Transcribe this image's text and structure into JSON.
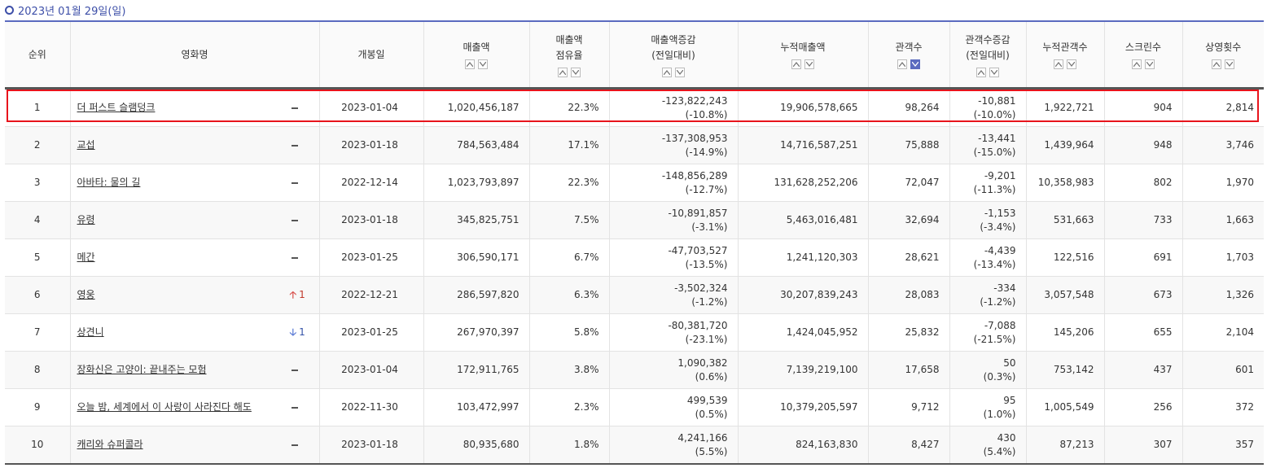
{
  "date": "2023년 01월 29일(일)",
  "columns": {
    "rank": "순위",
    "title": "영화명",
    "open_date": "개봉일",
    "sales": "매출액",
    "share_1": "매출액",
    "share_2": "점유율",
    "sales_change_1": "매출액증감",
    "sales_change_2": "(전일대비)",
    "cum_sales": "누적매출액",
    "audience": "관객수",
    "aud_change_1": "관객수증감",
    "aud_change_2": "(전일대비)",
    "cum_audience": "누적관객수",
    "screens": "스크린수",
    "shows": "상영횟수"
  },
  "accent_color": "#5b6bbf",
  "highlight_color": "#e8141c",
  "rows": [
    {
      "rank": "1",
      "title": "더 퍼스트 슬램덩크",
      "change_type": "same",
      "change_num": "",
      "open_date": "2023-01-04",
      "sales": "1,020,456,187",
      "share": "22.3%",
      "sales_diff": "-123,822,243",
      "sales_diff_pct": "(-10.8%)",
      "cum_sales": "19,906,578,665",
      "audience": "98,264",
      "aud_diff": "-10,881",
      "aud_diff_pct": "(-10.0%)",
      "cum_audience": "1,922,721",
      "screens": "904",
      "shows": "2,814"
    },
    {
      "rank": "2",
      "title": "교섭",
      "change_type": "same",
      "change_num": "",
      "open_date": "2023-01-18",
      "sales": "784,563,484",
      "share": "17.1%",
      "sales_diff": "-137,308,953",
      "sales_diff_pct": "(-14.9%)",
      "cum_sales": "14,716,587,251",
      "audience": "75,888",
      "aud_diff": "-13,441",
      "aud_diff_pct": "(-15.0%)",
      "cum_audience": "1,439,964",
      "screens": "948",
      "shows": "3,746"
    },
    {
      "rank": "3",
      "title": "아바타: 물의 길",
      "change_type": "same",
      "change_num": "",
      "open_date": "2022-12-14",
      "sales": "1,023,793,897",
      "share": "22.3%",
      "sales_diff": "-148,856,289",
      "sales_diff_pct": "(-12.7%)",
      "cum_sales": "131,628,252,206",
      "audience": "72,047",
      "aud_diff": "-9,201",
      "aud_diff_pct": "(-11.3%)",
      "cum_audience": "10,358,983",
      "screens": "802",
      "shows": "1,970"
    },
    {
      "rank": "4",
      "title": "유령",
      "change_type": "same",
      "change_num": "",
      "open_date": "2023-01-18",
      "sales": "345,825,751",
      "share": "7.5%",
      "sales_diff": "-10,891,857",
      "sales_diff_pct": "(-3.1%)",
      "cum_sales": "5,463,016,481",
      "audience": "32,694",
      "aud_diff": "-1,153",
      "aud_diff_pct": "(-3.4%)",
      "cum_audience": "531,663",
      "screens": "733",
      "shows": "1,663"
    },
    {
      "rank": "5",
      "title": "메간",
      "change_type": "same",
      "change_num": "",
      "open_date": "2023-01-25",
      "sales": "306,590,171",
      "share": "6.7%",
      "sales_diff": "-47,703,527",
      "sales_diff_pct": "(-13.5%)",
      "cum_sales": "1,241,120,303",
      "audience": "28,621",
      "aud_diff": "-4,439",
      "aud_diff_pct": "(-13.4%)",
      "cum_audience": "122,516",
      "screens": "691",
      "shows": "1,703"
    },
    {
      "rank": "6",
      "title": "영웅",
      "change_type": "up",
      "change_num": "1",
      "open_date": "2022-12-21",
      "sales": "286,597,820",
      "share": "6.3%",
      "sales_diff": "-3,502,324",
      "sales_diff_pct": "(-1.2%)",
      "cum_sales": "30,207,839,243",
      "audience": "28,083",
      "aud_diff": "-334",
      "aud_diff_pct": "(-1.2%)",
      "cum_audience": "3,057,548",
      "screens": "673",
      "shows": "1,326"
    },
    {
      "rank": "7",
      "title": "상견니",
      "change_type": "down",
      "change_num": "1",
      "open_date": "2023-01-25",
      "sales": "267,970,397",
      "share": "5.8%",
      "sales_diff": "-80,381,720",
      "sales_diff_pct": "(-23.1%)",
      "cum_sales": "1,424,045,952",
      "audience": "25,832",
      "aud_diff": "-7,088",
      "aud_diff_pct": "(-21.5%)",
      "cum_audience": "145,206",
      "screens": "655",
      "shows": "2,104"
    },
    {
      "rank": "8",
      "title": "장화신은 고양이: 끝내주는 모험",
      "change_type": "same",
      "change_num": "",
      "open_date": "2023-01-04",
      "sales": "172,911,765",
      "share": "3.8%",
      "sales_diff": "1,090,382",
      "sales_diff_pct": "(0.6%)",
      "cum_sales": "7,139,219,100",
      "audience": "17,658",
      "aud_diff": "50",
      "aud_diff_pct": "(0.3%)",
      "cum_audience": "753,142",
      "screens": "437",
      "shows": "601"
    },
    {
      "rank": "9",
      "title": "오늘 밤, 세계에서 이 사랑이 사라진다 해도",
      "change_type": "same",
      "change_num": "",
      "open_date": "2022-11-30",
      "sales": "103,472,997",
      "share": "2.3%",
      "sales_diff": "499,539",
      "sales_diff_pct": "(0.5%)",
      "cum_sales": "10,379,205,597",
      "audience": "9,712",
      "aud_diff": "95",
      "aud_diff_pct": "(1.0%)",
      "cum_audience": "1,005,549",
      "screens": "256",
      "shows": "372"
    },
    {
      "rank": "10",
      "title": "캐리와 슈퍼콜라",
      "change_type": "same",
      "change_num": "",
      "open_date": "2023-01-18",
      "sales": "80,935,680",
      "share": "1.8%",
      "sales_diff": "4,241,166",
      "sales_diff_pct": "(5.5%)",
      "cum_sales": "824,163,830",
      "audience": "8,427",
      "aud_diff": "430",
      "aud_diff_pct": "(5.4%)",
      "cum_audience": "87,213",
      "screens": "307",
      "shows": "357"
    }
  ]
}
